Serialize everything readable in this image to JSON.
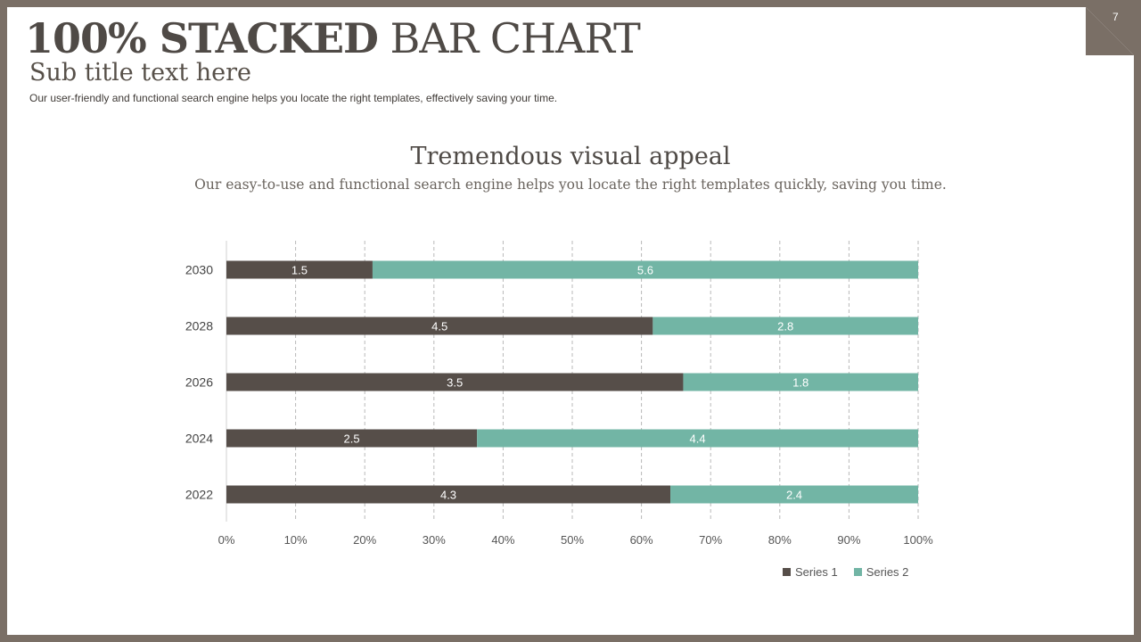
{
  "slide": {
    "page_number": "7",
    "title_bold": "100% STACKED",
    "title_rest": " BAR CHART",
    "subtitle": "Sub title text here",
    "description": "Our user-friendly and functional search engine helps you locate the right templates, effectively saving your time."
  },
  "chart_header": {
    "title": "Tremendous visual appeal",
    "subtitle": "Our easy-to-use and functional search engine helps you locate the right templates quickly, saving you time."
  },
  "colors": {
    "series1": "#564e49",
    "series2": "#72b5a5",
    "frame": "#7a6f66"
  },
  "chart_data": {
    "type": "bar",
    "orientation": "horizontal",
    "stacking": "percent",
    "categories": [
      "2030",
      "2028",
      "2026",
      "2024",
      "2022"
    ],
    "series": [
      {
        "name": "Series 1",
        "values": [
          1.5,
          4.5,
          3.5,
          2.5,
          4.3
        ]
      },
      {
        "name": "Series 2",
        "values": [
          5.6,
          2.8,
          1.8,
          4.4,
          2.4
        ]
      }
    ],
    "xlim": [
      0,
      100
    ],
    "x_tick_labels": [
      "0%",
      "10%",
      "20%",
      "30%",
      "40%",
      "50%",
      "60%",
      "70%",
      "80%",
      "90%",
      "100%"
    ],
    "grid": "vertical dashed",
    "legend_position": "bottom-right"
  }
}
